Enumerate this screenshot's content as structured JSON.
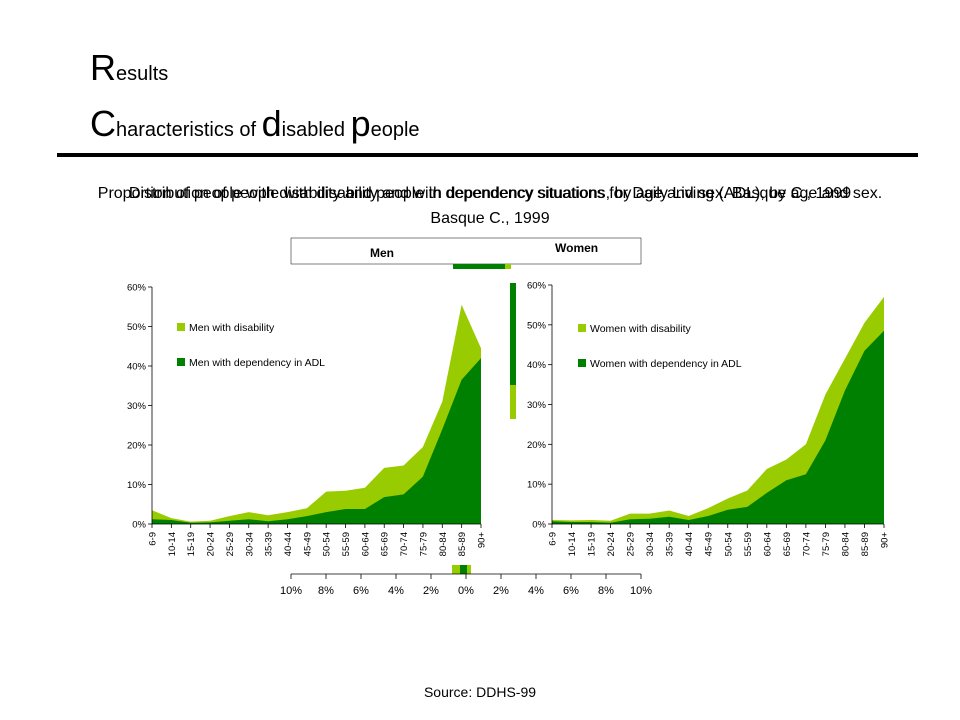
{
  "slide": {
    "title_cap": "R",
    "title_rest": "esults",
    "subtitle_parts": [
      {
        "cap": "C",
        "rest": "haracteristics of "
      },
      {
        "cap": "d",
        "rest": "isabled "
      },
      {
        "cap": "p",
        "rest": "eople"
      }
    ],
    "source": "Source: DDHS-99"
  },
  "pyramid_behind": {
    "title": "Distribution of people with disability and with dependency situations, by age and sex. Basque C., 1999",
    "men_label": "Men",
    "women_label": "Women",
    "x_ticks": [
      "10%",
      "8%",
      "6%",
      "4%",
      "2%",
      "0%",
      "2%",
      "4%",
      "6%",
      "8%",
      "10%"
    ]
  },
  "chart_caption": "Proportion of people with disability and people in dependency situations for Daily Living (ADL), by age and sex. Basque C., 1999",
  "colors": {
    "disability": "#99cc00",
    "dependency": "#008000",
    "axis": "#000000"
  },
  "chart_data": [
    {
      "type": "area",
      "categories": [
        "6-9",
        "10-14",
        "15-19",
        "20-24",
        "25-29",
        "30-34",
        "35-39",
        "40-44",
        "45-49",
        "50-54",
        "55-59",
        "60-64",
        "65-69",
        "70-74",
        "75-79",
        "80-84",
        "85-89",
        "90+"
      ],
      "y_ticks": [
        "0%",
        "10%",
        "20%",
        "30%",
        "40%",
        "50%",
        "60%"
      ],
      "ylim": [
        0,
        60
      ],
      "series": [
        {
          "name": "Men with disability",
          "values": [
            3.5,
            1.5,
            0.6,
            0.8,
            2,
            3,
            2.2,
            3,
            4,
            8.2,
            8.4,
            9.2,
            14.2,
            14.8,
            19.5,
            31,
            55.5,
            44.5
          ]
        },
        {
          "name": "Men with dependency in ADL",
          "values": [
            1.2,
            1,
            0.3,
            0.4,
            0.8,
            1.2,
            0.7,
            1.2,
            2,
            3,
            3.8,
            3.8,
            6.8,
            7.5,
            12,
            24,
            36.5,
            42
          ]
        }
      ]
    },
    {
      "type": "area",
      "categories": [
        "6-9",
        "10-14",
        "15-19",
        "20-24",
        "25-29",
        "30-34",
        "35-39",
        "40-44",
        "45-49",
        "50-54",
        "55-59",
        "60-64",
        "65-69",
        "70-74",
        "75-79",
        "80-84",
        "85-89",
        "90+"
      ],
      "y_ticks": [
        "0%",
        "10%",
        "20%",
        "30%",
        "40%",
        "50%",
        "60%"
      ],
      "ylim": [
        0,
        60
      ],
      "series": [
        {
          "name": "Women with disability",
          "values": [
            1,
            0.9,
            1,
            0.8,
            2.6,
            2.6,
            3.4,
            2,
            4,
            6.4,
            8.4,
            13.8,
            16.2,
            20,
            32.5,
            41.5,
            50.5,
            57
          ]
        },
        {
          "name": "Women with dependency in ADL",
          "values": [
            0.7,
            0.5,
            0.5,
            0.3,
            1.2,
            1.3,
            1.8,
            1,
            2,
            3.6,
            4.3,
            7.8,
            11,
            12.5,
            21,
            33.5,
            43.5,
            48.5
          ]
        }
      ]
    }
  ]
}
